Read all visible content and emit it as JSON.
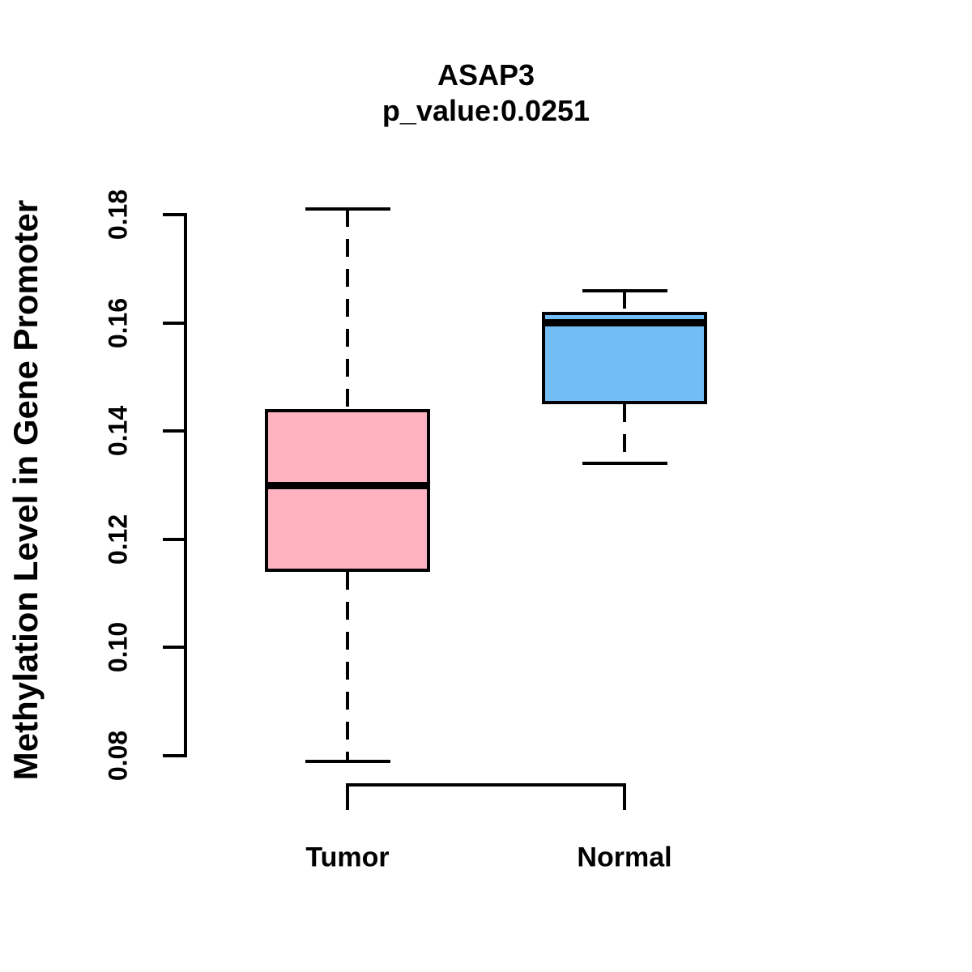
{
  "chart_data": {
    "type": "boxplot",
    "title": "ASAP3",
    "subtitle": "p_value:0.0251",
    "ylabel": "Methylation Level in Gene Promoter",
    "xlabel": "",
    "categories": [
      "Tumor",
      "Normal"
    ],
    "series": [
      {
        "name": "Tumor",
        "fill_color": "#FFB3C1",
        "border_color": "#000000",
        "lower_whisker": 0.079,
        "q1": 0.114,
        "median": 0.13,
        "q3": 0.144,
        "upper_whisker": 0.181
      },
      {
        "name": "Normal",
        "fill_color": "#73BDF5",
        "border_color": "#000000",
        "lower_whisker": 0.134,
        "q1": 0.145,
        "median": 0.16,
        "q3": 0.162,
        "upper_whisker": 0.166
      }
    ],
    "ylim": [
      0.08,
      0.18
    ],
    "yticks": [
      0.08,
      0.1,
      0.12,
      0.14,
      0.16,
      0.18
    ],
    "ytick_labels": [
      "0.08",
      "0.10",
      "0.12",
      "0.14",
      "0.16",
      "0.18"
    ],
    "grid": false,
    "legend_position": "none",
    "whisker_line_style": "dashed",
    "text_color": "#000000",
    "background_color": "#ffffff"
  }
}
